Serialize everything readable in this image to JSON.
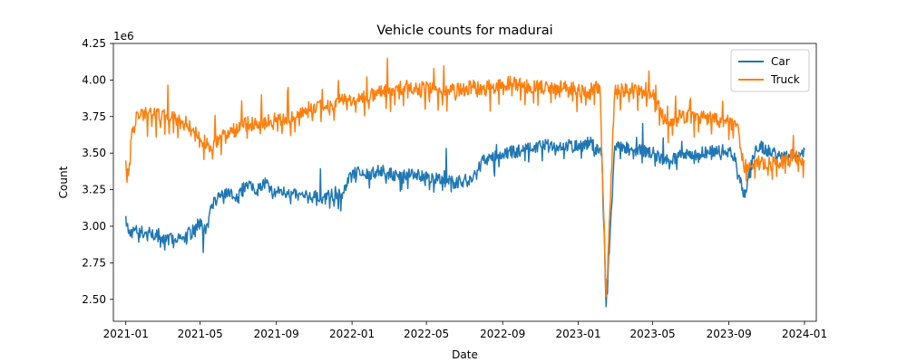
{
  "chart_data": {
    "type": "line",
    "title": "Vehicle counts for madurai",
    "xlabel": "Date",
    "ylabel": "Count",
    "y_offset_label": "1e6",
    "xlim": [
      "2020-12-12",
      "2024-01-20"
    ],
    "ylim": [
      2.35,
      4.25
    ],
    "y_scale_multiplier": 1000000,
    "x_ticks": [
      "2021-01",
      "2021-05",
      "2021-09",
      "2022-01",
      "2022-05",
      "2022-09",
      "2023-01",
      "2023-05",
      "2023-09",
      "2024-01"
    ],
    "y_ticks": [
      "2.50",
      "2.75",
      "3.00",
      "3.25",
      "3.50",
      "3.75",
      "4.00",
      "4.25"
    ],
    "grid": false,
    "legend_position": "top-right",
    "colors": {
      "Car": "#1f77b4",
      "Truck": "#ff7f0e"
    },
    "series": [
      {
        "name": "Car",
        "note": "daily series; anchor points approximate",
        "x": [
          "2021-01-01",
          "2021-01-06",
          "2021-01-15",
          "2021-02-01",
          "2021-03-01",
          "2021-03-20",
          "2021-04-01",
          "2021-04-20",
          "2021-05-01",
          "2021-05-10",
          "2021-05-20",
          "2021-06-01",
          "2021-06-15",
          "2021-07-01",
          "2021-07-15",
          "2021-08-01",
          "2021-08-15",
          "2021-08-28",
          "2021-09-05",
          "2021-09-20",
          "2021-10-15",
          "2021-11-15",
          "2021-12-15",
          "2022-01-05",
          "2022-01-20",
          "2022-02-15",
          "2022-03-15",
          "2022-04-15",
          "2022-05-15",
          "2022-06-15",
          "2022-07-15",
          "2022-08-01",
          "2022-09-01",
          "2022-10-01",
          "2022-11-01",
          "2022-12-01",
          "2023-01-01",
          "2023-01-20",
          "2023-02-08",
          "2023-02-15",
          "2023-03-01",
          "2023-04-01",
          "2023-05-01",
          "2023-05-20",
          "2023-06-15",
          "2023-07-15",
          "2023-08-15",
          "2023-09-10",
          "2023-09-25",
          "2023-10-15",
          "2023-11-15",
          "2023-12-15",
          "2024-01-01"
        ],
        "values": [
          3.07,
          2.95,
          2.97,
          2.96,
          2.93,
          2.9,
          2.92,
          2.97,
          3.05,
          2.95,
          3.15,
          3.2,
          3.25,
          3.2,
          3.3,
          3.25,
          3.3,
          3.22,
          3.25,
          3.22,
          3.2,
          3.2,
          3.22,
          3.38,
          3.35,
          3.38,
          3.35,
          3.36,
          3.32,
          3.3,
          3.32,
          3.45,
          3.5,
          3.52,
          3.55,
          3.55,
          3.55,
          3.57,
          3.5,
          2.45,
          3.55,
          3.52,
          3.5,
          3.45,
          3.48,
          3.5,
          3.52,
          3.5,
          3.2,
          3.55,
          3.5,
          3.48,
          3.52
        ]
      },
      {
        "name": "Truck",
        "note": "daily series; anchor points approximate",
        "x": [
          "2021-01-01",
          "2021-01-03",
          "2021-01-10",
          "2021-01-20",
          "2021-02-15",
          "2021-03-15",
          "2021-04-10",
          "2021-05-01",
          "2021-05-15",
          "2021-06-01",
          "2021-06-20",
          "2021-07-15",
          "2021-08-15",
          "2021-08-28",
          "2021-09-15",
          "2021-10-15",
          "2021-11-15",
          "2021-12-15",
          "2022-01-15",
          "2022-02-15",
          "2022-03-15",
          "2022-04-15",
          "2022-05-15",
          "2022-06-15",
          "2022-07-15",
          "2022-08-15",
          "2022-09-15",
          "2022-10-15",
          "2022-11-15",
          "2022-12-15",
          "2023-01-15",
          "2023-02-05",
          "2023-02-15",
          "2023-03-01",
          "2023-04-01",
          "2023-05-01",
          "2023-05-20",
          "2023-06-15",
          "2023-07-15",
          "2023-08-15",
          "2023-09-15",
          "2023-09-25",
          "2023-10-15",
          "2023-11-15",
          "2023-12-15",
          "2024-01-01"
        ],
        "values": [
          3.45,
          3.3,
          3.6,
          3.78,
          3.76,
          3.74,
          3.7,
          3.6,
          3.55,
          3.6,
          3.65,
          3.7,
          3.72,
          3.73,
          3.72,
          3.8,
          3.82,
          3.86,
          3.88,
          3.92,
          3.95,
          3.95,
          3.93,
          3.93,
          3.95,
          3.95,
          3.98,
          3.95,
          3.95,
          3.95,
          3.92,
          3.95,
          2.52,
          3.92,
          3.93,
          3.9,
          3.72,
          3.75,
          3.75,
          3.72,
          3.7,
          3.4,
          3.45,
          3.42,
          3.48,
          3.45
        ]
      }
    ]
  }
}
